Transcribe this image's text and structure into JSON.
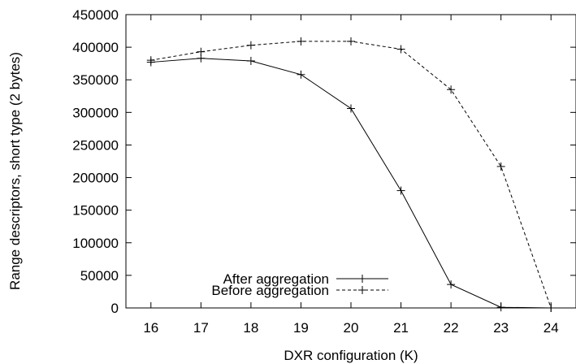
{
  "chart_data": {
    "type": "line",
    "title": "",
    "xlabel": "DXR configuration (K)",
    "ylabel": "Range descriptors, short type (2 bytes)",
    "x": [
      16,
      17,
      18,
      19,
      20,
      21,
      22,
      23,
      24
    ],
    "xlim": [
      15.5,
      24.5
    ],
    "ylim": [
      0,
      450000
    ],
    "x_ticks": [
      "16",
      "17",
      "18",
      "19",
      "20",
      "21",
      "22",
      "23",
      "24"
    ],
    "y_ticks": [
      "0",
      "50000",
      "100000",
      "150000",
      "200000",
      "250000",
      "300000",
      "350000",
      "400000",
      "450000"
    ],
    "grid": false,
    "legend_position": "bottom-left",
    "series": [
      {
        "name": "After aggregation",
        "style": "solid",
        "marker": "+",
        "color": "#000000",
        "values": [
          377000,
          383000,
          379000,
          358000,
          306000,
          180000,
          36000,
          1000,
          0
        ]
      },
      {
        "name": "Before aggregation",
        "style": "dashed",
        "marker": "+",
        "color": "#000000",
        "values": [
          380000,
          393000,
          403000,
          409000,
          409000,
          397000,
          335000,
          217000,
          0
        ]
      }
    ]
  }
}
